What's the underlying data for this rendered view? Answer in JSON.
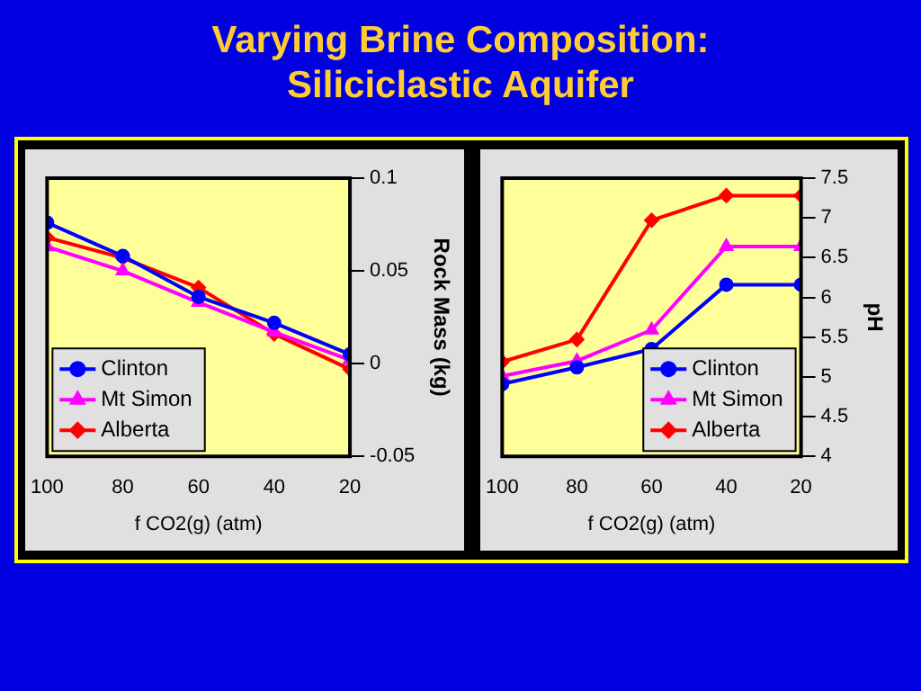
{
  "chart_data": [
    {
      "type": "line",
      "title": "Varying Brine Composition:\nSiliciclastic Aquifer",
      "xlabel": "f CO2(g) (atm)",
      "ylabel": "Rock Mass (kg)",
      "x": [
        100,
        80,
        60,
        40,
        20
      ],
      "xlim": [
        100,
        20
      ],
      "xticks": [
        100,
        80,
        60,
        40,
        20
      ],
      "ylim": [
        -0.05,
        0.1
      ],
      "yticks": [
        -0.05,
        0,
        0.05,
        0.1
      ],
      "grid": false,
      "legend": "bottom left",
      "series": [
        {
          "name": "Clinton",
          "color": "#0000ff",
          "marker": "circle",
          "values": [
            0.076,
            0.058,
            0.036,
            0.022,
            0.005
          ]
        },
        {
          "name": "Mt Simon",
          "color": "#ff00ff",
          "marker": "triangle",
          "values": [
            0.063,
            0.05,
            0.033,
            0.017,
            0.002
          ]
        },
        {
          "name": "Alberta",
          "color": "#ff0000",
          "marker": "diamond",
          "values": [
            0.068,
            0.057,
            0.041,
            0.016,
            -0.003
          ]
        }
      ]
    },
    {
      "type": "line",
      "xlabel": "f CO2(g) (atm)",
      "ylabel": "pH",
      "x": [
        100,
        80,
        60,
        40,
        20
      ],
      "xlim": [
        100,
        20
      ],
      "xticks": [
        100,
        80,
        60,
        40,
        20
      ],
      "ylim": [
        4,
        7.5
      ],
      "yticks": [
        4,
        4.5,
        5,
        5.5,
        6,
        6.5,
        7,
        7.5
      ],
      "grid": false,
      "legend": "bottom right",
      "series": [
        {
          "name": "Clinton",
          "color": "#0000ff",
          "marker": "circle",
          "values": [
            4.91,
            5.12,
            5.35,
            6.16,
            6.16
          ]
        },
        {
          "name": "Mt Simon",
          "color": "#ff00ff",
          "marker": "triangle",
          "values": [
            5.01,
            5.2,
            5.59,
            6.64,
            6.64
          ]
        },
        {
          "name": "Alberta",
          "color": "#ff0000",
          "marker": "diamond",
          "values": [
            5.19,
            5.47,
            6.97,
            7.28,
            7.28
          ]
        }
      ]
    }
  ]
}
